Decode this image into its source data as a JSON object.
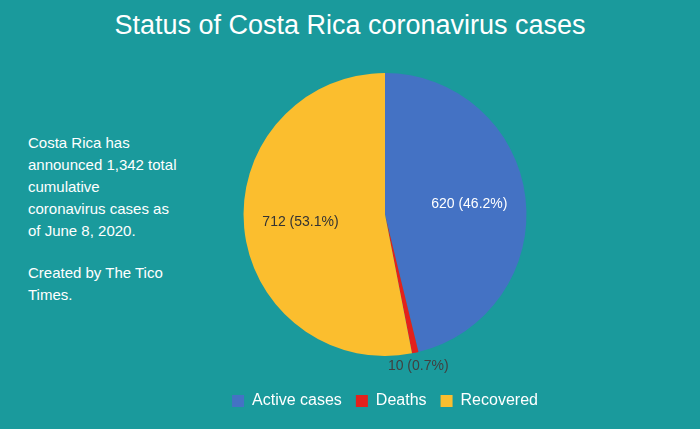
{
  "chart_data": {
    "type": "pie",
    "title": "Status of Costa Rica coronavirus cases",
    "categories": [
      "Active cases",
      "Deaths",
      "Recovered"
    ],
    "values": [
      620,
      10,
      712
    ],
    "value_labels": [
      "620 (46.2%)",
      "10 (0.7%)",
      "712 (53.1%)"
    ],
    "colors": [
      "#4472c4",
      "#e3211c",
      "#fbbe2e"
    ],
    "data_labels": true,
    "legend": "bottom",
    "annotations": [
      "Costa Rica has announced 1,342 total cumulative coronavirus cases as of June 8, 2020.",
      "Created by The Tico Times."
    ]
  }
}
